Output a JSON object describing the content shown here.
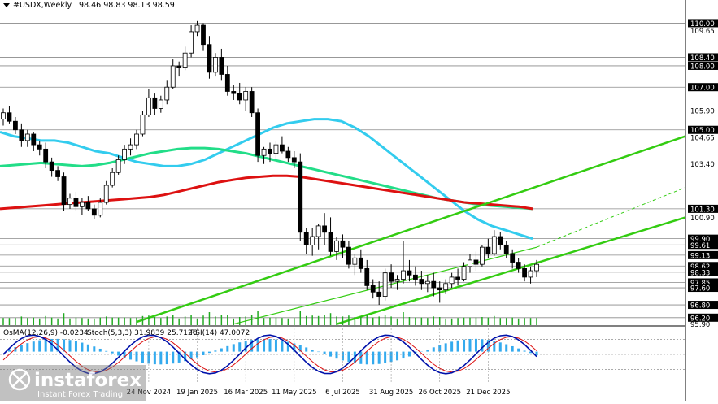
{
  "header": {
    "symbol": "#USDX,Weekly",
    "ohlc": "98.46 98.83 98.13 98.59"
  },
  "indicator_header": {
    "osma": "OsMA(12,26,9) -0.0234",
    "stoch": "Stoch(5,3,3) 31.9839 25.7126",
    "rsi": "RSI(14) 47.0072"
  },
  "watermark": {
    "brand": "instaforex",
    "tagline": "Instant Forex Trading"
  },
  "colors": {
    "bull_candle": "#ffffff",
    "bear_candle": "#000000",
    "ma_short": "#33ccee",
    "ma_mid": "#22dd88",
    "ma_long": "#dd1111",
    "channel": "#33cc11",
    "osma_hist": "#33aaee",
    "stoch_main": "#0011aa",
    "stoch_signal": "#dd1111",
    "volume": "#22aa22"
  },
  "chart_data": {
    "type": "candlestick",
    "symbol": "#USDX",
    "timeframe": "Weekly",
    "price_levels": [
      110.0,
      109.65,
      108.4,
      108.0,
      107.0,
      105.9,
      105.0,
      104.65,
      103.4,
      101.3,
      100.9,
      99.9,
      99.61,
      99.13,
      98.62,
      98.33,
      97.85,
      97.6,
      96.8,
      96.2,
      95.9
    ],
    "highlighted_levels": [
      110.0,
      108.4,
      108.0,
      107.0,
      105.0,
      101.3,
      99.9,
      99.61,
      99.13,
      98.62,
      98.33,
      97.85,
      97.6,
      96.8,
      96.2
    ],
    "plain_ticks": [
      109.65,
      105.9,
      104.65,
      103.4,
      100.9,
      95.9
    ],
    "x_labels": [
      "24 Nov 2024",
      "19 Jan 2025",
      "16 Mar 2025",
      "11 May 2025",
      "6 Jul 2025",
      "31 Aug 2025",
      "26 Oct 2025",
      "21 Dec 2025"
    ],
    "ylim": [
      95.85,
      110.55
    ],
    "candles": [
      [
        105.5,
        106.0,
        105.2,
        105.8
      ],
      [
        105.8,
        106.1,
        105.3,
        105.4
      ],
      [
        105.4,
        105.6,
        104.8,
        105.0
      ],
      [
        105.0,
        105.3,
        104.2,
        104.5
      ],
      [
        104.5,
        105.0,
        104.2,
        104.8
      ],
      [
        104.8,
        104.9,
        104.0,
        104.3
      ],
      [
        104.3,
        104.5,
        103.8,
        104.1
      ],
      [
        104.1,
        104.4,
        103.2,
        103.5
      ],
      [
        103.5,
        103.7,
        102.8,
        103.1
      ],
      [
        103.1,
        103.3,
        102.6,
        102.8
      ],
      [
        102.8,
        103.0,
        101.2,
        101.5
      ],
      [
        101.5,
        102.0,
        101.3,
        101.8
      ],
      [
        101.8,
        102.1,
        101.2,
        101.4
      ],
      [
        101.4,
        101.8,
        101.0,
        101.6
      ],
      [
        101.6,
        101.9,
        101.2,
        101.3
      ],
      [
        101.3,
        101.5,
        100.8,
        101.0
      ],
      [
        101.0,
        101.8,
        100.9,
        101.6
      ],
      [
        101.6,
        102.6,
        101.5,
        102.4
      ],
      [
        102.4,
        103.2,
        102.3,
        103.0
      ],
      [
        103.0,
        103.8,
        102.9,
        103.6
      ],
      [
        103.6,
        104.3,
        103.4,
        104.1
      ],
      [
        104.1,
        104.6,
        103.8,
        104.3
      ],
      [
        104.3,
        105.0,
        104.1,
        104.8
      ],
      [
        104.8,
        105.9,
        104.7,
        105.7
      ],
      [
        105.7,
        106.9,
        105.6,
        106.5
      ],
      [
        106.5,
        106.7,
        105.7,
        106.0
      ],
      [
        106.0,
        106.6,
        105.8,
        106.4
      ],
      [
        106.4,
        107.3,
        106.2,
        107.0
      ],
      [
        107.0,
        108.3,
        106.9,
        108.0
      ],
      [
        108.0,
        108.2,
        107.5,
        107.9
      ],
      [
        107.9,
        108.9,
        107.8,
        108.6
      ],
      [
        108.6,
        109.9,
        108.4,
        109.6
      ],
      [
        109.6,
        110.1,
        109.4,
        109.9
      ],
      [
        109.9,
        110.0,
        108.7,
        109.0
      ],
      [
        109.0,
        109.4,
        107.4,
        107.7
      ],
      [
        107.7,
        108.6,
        107.5,
        108.4
      ],
      [
        108.4,
        108.8,
        107.3,
        107.6
      ],
      [
        107.6,
        108.0,
        106.6,
        106.8
      ],
      [
        106.8,
        107.1,
        106.4,
        106.7
      ],
      [
        106.7,
        107.2,
        106.2,
        106.4
      ],
      [
        106.4,
        107.0,
        105.9,
        106.8
      ],
      [
        106.8,
        107.0,
        105.6,
        105.8
      ],
      [
        105.8,
        106.0,
        103.5,
        103.8
      ],
      [
        103.8,
        104.2,
        103.4,
        104.1
      ],
      [
        104.1,
        104.4,
        103.5,
        103.9
      ],
      [
        103.9,
        104.5,
        103.6,
        104.3
      ],
      [
        104.3,
        104.7,
        103.9,
        104.0
      ],
      [
        104.0,
        104.2,
        103.5,
        103.7
      ],
      [
        103.7,
        104.0,
        103.2,
        103.5
      ],
      [
        103.5,
        103.9,
        99.8,
        100.2
      ],
      [
        100.2,
        100.4,
        99.2,
        99.6
      ],
      [
        99.6,
        100.4,
        99.1,
        100.0
      ],
      [
        100.0,
        100.6,
        99.4,
        100.5
      ],
      [
        100.5,
        101.1,
        99.6,
        100.2
      ],
      [
        100.2,
        100.9,
        99.1,
        99.3
      ],
      [
        99.3,
        100.0,
        98.9,
        99.8
      ],
      [
        99.8,
        100.1,
        99.0,
        99.5
      ],
      [
        99.5,
        99.8,
        98.5,
        98.7
      ],
      [
        98.7,
        99.2,
        98.2,
        99.0
      ],
      [
        99.0,
        99.4,
        98.3,
        98.5
      ],
      [
        98.5,
        98.9,
        97.5,
        97.7
      ],
      [
        97.7,
        98.0,
        97.1,
        97.4
      ],
      [
        97.4,
        97.9,
        96.8,
        97.2
      ],
      [
        97.2,
        98.5,
        97.0,
        98.3
      ],
      [
        98.3,
        98.7,
        97.6,
        97.9
      ],
      [
        97.9,
        98.2,
        97.5,
        98.0
      ],
      [
        98.0,
        99.8,
        97.8,
        98.4
      ],
      [
        98.4,
        98.9,
        97.9,
        98.2
      ],
      [
        98.2,
        98.6,
        97.7,
        98.0
      ],
      [
        98.0,
        98.4,
        97.5,
        97.8
      ],
      [
        97.8,
        98.2,
        97.4,
        97.9
      ],
      [
        97.9,
        98.3,
        97.2,
        97.6
      ],
      [
        97.6,
        97.9,
        96.9,
        97.5
      ],
      [
        97.5,
        98.0,
        97.3,
        97.8
      ],
      [
        97.8,
        98.3,
        97.6,
        98.1
      ],
      [
        98.1,
        98.5,
        97.7,
        98.0
      ],
      [
        98.0,
        98.8,
        97.9,
        98.6
      ],
      [
        98.6,
        99.2,
        98.3,
        98.9
      ],
      [
        98.9,
        99.3,
        98.4,
        98.7
      ],
      [
        98.7,
        99.6,
        98.6,
        99.5
      ],
      [
        99.5,
        99.9,
        99.0,
        99.2
      ],
      [
        99.2,
        100.3,
        99.1,
        100.0
      ],
      [
        100.0,
        100.2,
        99.4,
        99.6
      ],
      [
        99.6,
        99.8,
        99.0,
        99.2
      ],
      [
        99.2,
        99.4,
        98.5,
        98.8
      ],
      [
        98.8,
        99.0,
        98.3,
        98.5
      ],
      [
        98.5,
        98.7,
        97.9,
        98.1
      ],
      [
        98.1,
        98.6,
        97.8,
        98.4
      ],
      [
        98.4,
        98.9,
        98.1,
        98.7
      ]
    ],
    "moving_averages": [
      {
        "period_hint": "short",
        "values": [
          104.9,
          104.7,
          104.6,
          104.5,
          104.5,
          104.4,
          104.2,
          104.0,
          103.9,
          103.7,
          103.5,
          103.4,
          103.3,
          103.3,
          103.4,
          103.6,
          103.9,
          104.2,
          104.5,
          104.8,
          105.1,
          105.3,
          105.4,
          105.5,
          105.5,
          105.4,
          105.1,
          104.7,
          104.2,
          103.7,
          103.2,
          102.7,
          102.2,
          101.7,
          101.2,
          100.8,
          100.5,
          100.3,
          100.1,
          99.9
        ]
      },
      {
        "period_hint": "mid",
        "values": [
          103.3,
          103.35,
          103.4,
          103.45,
          103.4,
          103.35,
          103.3,
          103.35,
          103.45,
          103.6,
          103.75,
          103.9,
          104.0,
          104.1,
          104.15,
          104.15,
          104.1,
          104.0,
          103.9,
          103.75,
          103.6,
          103.45,
          103.3,
          103.15,
          103.0,
          102.85,
          102.7,
          102.55,
          102.4,
          102.25,
          102.1,
          101.95,
          101.8,
          101.7,
          101.6,
          101.5,
          101.45,
          101.4,
          101.35,
          101.3
        ]
      },
      {
        "period_hint": "long",
        "values": [
          101.3,
          101.35,
          101.4,
          101.45,
          101.5,
          101.55,
          101.6,
          101.65,
          101.7,
          101.75,
          101.8,
          101.85,
          101.95,
          102.1,
          102.25,
          102.4,
          102.55,
          102.65,
          102.75,
          102.8,
          102.85,
          102.85,
          102.8,
          102.7,
          102.6,
          102.5,
          102.4,
          102.3,
          102.2,
          102.1,
          102.0,
          101.9,
          101.8,
          101.7,
          101.6,
          101.55,
          101.5,
          101.45,
          101.4,
          101.3
        ]
      }
    ]
  }
}
